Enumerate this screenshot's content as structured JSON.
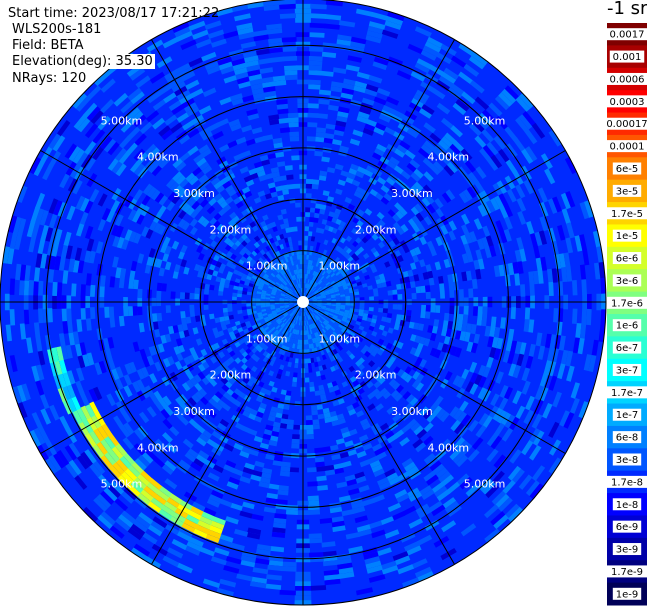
{
  "info": {
    "start_time": "Start time: 2023/08/17 17:21:22",
    "device": "WLS200s-181",
    "field": "Field: BETA",
    "elevation": "Elevation(deg): 35.30",
    "nrays": "NRays: 120"
  },
  "chart_data": {
    "type": "heatmap",
    "projection": "polar PPI",
    "field": "BETA",
    "nrays": 120,
    "elevation_deg": 35.3,
    "range_max_km": 5.9,
    "range_rings_km": [
      1,
      2,
      3,
      4,
      5
    ],
    "ring_labels": [
      "1.00km",
      "2.00km",
      "3.00km",
      "4.00km",
      "5.00km"
    ],
    "spoke_interval_deg": 30,
    "grid": true,
    "colorbar": {
      "unit": "-1 sr",
      "placement": "right",
      "levels": [
        {
          "label": "0.0017",
          "color": "#7f0000"
        },
        {
          "label": "0.001",
          "color": "#a80000"
        },
        {
          "label": "0.0006",
          "color": "#d40000"
        },
        {
          "label": "0.0003",
          "color": "#ff0000"
        },
        {
          "label": "0.00017",
          "color": "#ff2a00"
        },
        {
          "label": "0.0001",
          "color": "#ff5600"
        },
        {
          "label": "6e-5",
          "color": "#ff8000"
        },
        {
          "label": "3e-5",
          "color": "#ffab00"
        },
        {
          "label": "1.7e-5",
          "color": "#ffd400"
        },
        {
          "label": "1e-5",
          "color": "#ffff00"
        },
        {
          "label": "6e-6",
          "color": "#d4ff2a"
        },
        {
          "label": "3e-6",
          "color": "#abff55"
        },
        {
          "label": "1.7e-6",
          "color": "#80ff80"
        },
        {
          "label": "1e-6",
          "color": "#55ffab"
        },
        {
          "label": "6e-7",
          "color": "#2affd4"
        },
        {
          "label": "3e-7",
          "color": "#00ffff"
        },
        {
          "label": "1.7e-7",
          "color": "#00d4ff"
        },
        {
          "label": "1e-7",
          "color": "#00abff"
        },
        {
          "label": "6e-8",
          "color": "#0080ff"
        },
        {
          "label": "3e-8",
          "color": "#0056ff"
        },
        {
          "label": "1.7e-8",
          "color": "#002aff"
        },
        {
          "label": "1e-8",
          "color": "#0000ff"
        },
        {
          "label": "6e-9",
          "color": "#0000d4"
        },
        {
          "label": "3e-9",
          "color": "#0000a8"
        },
        {
          "label": "1.7e-9",
          "color": "#00007f"
        },
        {
          "label": "1e-9",
          "color": "#000058"
        }
      ]
    },
    "background_level": "1.7e-8",
    "features": [
      {
        "description": "elevated backscatter arc",
        "azimuth_deg": [
          200,
          243
        ],
        "range_km": [
          4.55,
          5.0
        ],
        "peak_level": "1.7e-5"
      },
      {
        "description": "elevated backscatter arc",
        "azimuth_deg": [
          245,
          258
        ],
        "range_km": [
          4.75,
          5.05
        ],
        "peak_level": "1.7e-6"
      }
    ]
  }
}
